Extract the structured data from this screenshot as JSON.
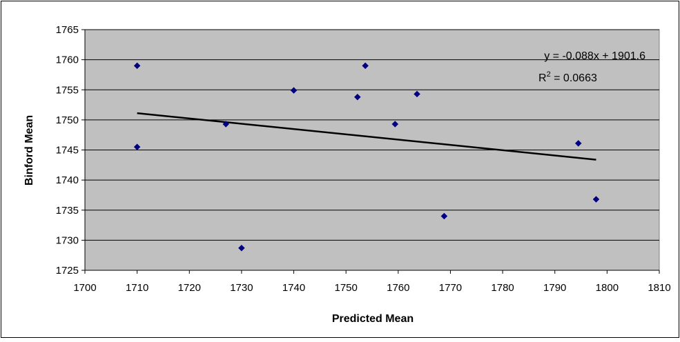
{
  "chart_data": {
    "type": "scatter",
    "xlabel": "Predicted Mean",
    "ylabel": "Binford Mean",
    "xlim": [
      1700,
      1810
    ],
    "ylim": [
      1725,
      1765
    ],
    "xticks": [
      1700,
      1710,
      1720,
      1730,
      1740,
      1750,
      1760,
      1770,
      1780,
      1790,
      1800,
      1810
    ],
    "yticks": [
      1725,
      1730,
      1735,
      1740,
      1745,
      1750,
      1755,
      1760,
      1765
    ],
    "grid": "horizontal",
    "plot_background": "#c0c0c0",
    "marker_color": "#000080",
    "series": [
      {
        "points": [
          {
            "x": 1710,
            "y": 1759
          },
          {
            "x": 1710,
            "y": 1745.5
          },
          {
            "x": 1727,
            "y": 1749.3
          },
          {
            "x": 1730,
            "y": 1728.7
          },
          {
            "x": 1740,
            "y": 1754.9
          },
          {
            "x": 1752.2,
            "y": 1753.8
          },
          {
            "x": 1753.7,
            "y": 1759
          },
          {
            "x": 1759.4,
            "y": 1749.3
          },
          {
            "x": 1763.6,
            "y": 1754.3
          },
          {
            "x": 1768.8,
            "y": 1734
          },
          {
            "x": 1794.5,
            "y": 1746.1
          },
          {
            "x": 1797.9,
            "y": 1736.8
          }
        ]
      }
    ],
    "trendline": {
      "slope": -0.088,
      "intercept": 1901.6,
      "x_range": [
        1710,
        1797.9
      ],
      "color": "#000000",
      "equation_label": "y = -0.088x + 1901.6",
      "r2_label_prefix": "R",
      "r2_label_sup": "2",
      "r2_label_value": " = 0.0663"
    }
  }
}
